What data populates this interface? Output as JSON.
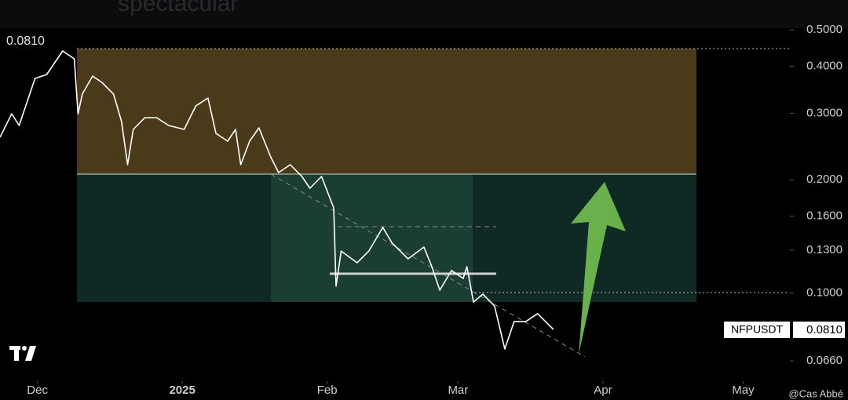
{
  "chart_data": {
    "type": "line",
    "log_scale": true,
    "headline": "spectacular",
    "high_label": "0.0810",
    "symbol": "NFPUSDT",
    "last_price_label": "0.0810",
    "watermark": "@Cas Abbé",
    "xlim": [
      -8,
      161
    ],
    "xticks": [
      {
        "value": 0,
        "label": "Dec"
      },
      {
        "value": 31,
        "label": "2025"
      },
      {
        "value": 62,
        "label": "Feb"
      },
      {
        "value": 90,
        "label": "Mar"
      },
      {
        "value": 121,
        "label": "Apr"
      },
      {
        "value": 151,
        "label": "May"
      }
    ],
    "ylim": [
      0.06,
      0.6
    ],
    "yticks": [
      {
        "value": 0.5,
        "label": "0.5000"
      },
      {
        "value": 0.4,
        "label": "0.4000"
      },
      {
        "value": 0.3,
        "label": "0.3000"
      },
      {
        "value": 0.2,
        "label": "0.2000"
      },
      {
        "value": 0.16,
        "label": "0.1600"
      },
      {
        "value": 0.13,
        "label": "0.1300"
      },
      {
        "value": 0.1,
        "label": "0.1000"
      },
      {
        "value": 0.066,
        "label": "0.0660"
      }
    ],
    "series": [
      {
        "name": "NFPUSDT",
        "color": "#ffffff",
        "x": [
          -8,
          -5.5,
          -3.9,
          -0.5,
          2.0,
          5.4,
          7.9,
          8.7,
          9.6,
          11.8,
          13.8,
          16.3,
          18.0,
          19.3,
          20.5,
          23.0,
          25.5,
          28.1,
          31.4,
          33.9,
          36.5,
          38.2,
          40.7,
          42.4,
          43.5,
          45.4,
          47.4,
          49.9,
          51.6,
          54.1,
          56.6,
          58.3,
          60.8,
          63.4,
          63.9,
          65.0,
          68.4,
          70.9,
          73.9,
          75.9,
          79.3,
          82.7,
          84.4,
          86.1,
          88.6,
          91.1,
          91.9,
          93.3,
          95.3,
          97.8,
          100.0,
          102.0,
          104.5,
          107.0,
          108.7,
          110.4
        ],
        "values": [
          0.2591,
          0.2992,
          0.2785,
          0.3714,
          0.3804,
          0.4392,
          0.4187,
          0.2992,
          0.3374,
          0.3768,
          0.3624,
          0.3374,
          0.2852,
          0.2191,
          0.2719,
          0.2922,
          0.2922,
          0.2785,
          0.2719,
          0.314,
          0.3294,
          0.2655,
          0.253,
          0.2719,
          0.2191,
          0.253,
          0.2745,
          0.2299,
          0.2088,
          0.2191,
          0.2039,
          0.1897,
          0.2039,
          0.1683,
          0.1042,
          0.1292,
          0.1203,
          0.1292,
          0.1493,
          0.1357,
          0.1232,
          0.1324,
          0.1174,
          0.1017,
          0.1147,
          0.1093,
          0.1174,
          0.0946,
          0.0993,
          0.0924,
          0.071,
          0.084,
          0.084,
          0.0881,
          0.084,
          0.08
        ]
      }
    ]
  }
}
